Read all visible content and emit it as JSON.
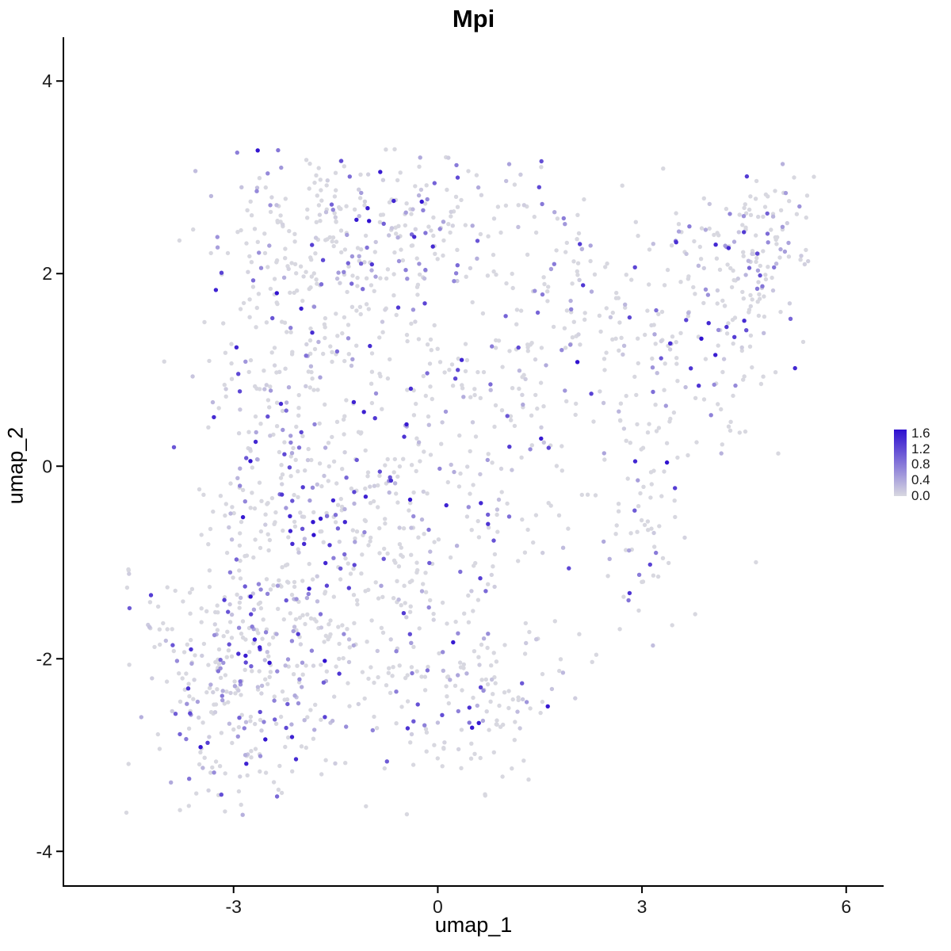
{
  "title": "Mpi",
  "chart_data": {
    "type": "scatter",
    "title": "Mpi",
    "subtitle": "",
    "xlabel": "umap_1",
    "ylabel": "umap_2",
    "xlim": [
      -5.5,
      6.55
    ],
    "ylim": [
      -4.36,
      4.43
    ],
    "x_ticks": [
      -3,
      0,
      3,
      6
    ],
    "y_ticks": [
      -4,
      -2,
      0,
      2,
      4
    ],
    "grid": false,
    "legend_position": "right",
    "legend": {
      "title": "",
      "tick_labels": [
        "1.6",
        "1.2",
        "0.8",
        "0.4",
        "0.0"
      ],
      "max_value": 1.7,
      "min_value": 0.0,
      "low_color": "#D8D8E0",
      "high_color": "#2E0FD0"
    },
    "point_radius": 2.7,
    "seed": 20240521,
    "n_points_approx": 1900,
    "expr_exponent": 1.8,
    "bounds": {
      "xmin": -4.75,
      "xmax": 5.55,
      "ymin": -3.65,
      "ymax": 3.3
    },
    "clusters": [
      {
        "cx": -2.9,
        "cy": -2.3,
        "sx": 0.75,
        "sy": 0.65,
        "n": 300,
        "expressed_frac": 0.45
      },
      {
        "cx": -2.3,
        "cy": -0.9,
        "sx": 0.7,
        "sy": 0.8,
        "n": 170,
        "expressed_frac": 0.4
      },
      {
        "cx": -2.3,
        "cy": 0.9,
        "sx": 0.7,
        "sy": 0.9,
        "n": 170,
        "expressed_frac": 0.4
      },
      {
        "cx": -1.6,
        "cy": 2.4,
        "sx": 0.7,
        "sy": 0.45,
        "n": 150,
        "expressed_frac": 0.4
      },
      {
        "cx": -0.3,
        "cy": 2.6,
        "sx": 0.9,
        "sy": 0.4,
        "n": 130,
        "expressed_frac": 0.35
      },
      {
        "cx": -0.6,
        "cy": 0.6,
        "sx": 0.9,
        "sy": 1.0,
        "n": 180,
        "expressed_frac": 0.35
      },
      {
        "cx": -0.4,
        "cy": -1.3,
        "sx": 0.9,
        "sy": 0.9,
        "n": 200,
        "expressed_frac": 0.35
      },
      {
        "cx": 0.6,
        "cy": -2.5,
        "sx": 0.7,
        "sy": 0.5,
        "n": 110,
        "expressed_frac": 0.35
      },
      {
        "cx": 1.1,
        "cy": 0.9,
        "sx": 0.7,
        "sy": 0.9,
        "n": 100,
        "expressed_frac": 0.35
      },
      {
        "cx": 2.2,
        "cy": 1.6,
        "sx": 0.6,
        "sy": 0.7,
        "n": 80,
        "expressed_frac": 0.3
      },
      {
        "cx": 3.3,
        "cy": 0.9,
        "sx": 0.7,
        "sy": 0.9,
        "n": 110,
        "expressed_frac": 0.3
      },
      {
        "cx": 4.3,
        "cy": 1.9,
        "sx": 0.6,
        "sy": 0.6,
        "n": 130,
        "expressed_frac": 0.35
      },
      {
        "cx": 4.8,
        "cy": 2.5,
        "sx": 0.35,
        "sy": 0.35,
        "n": 60,
        "expressed_frac": 0.4
      },
      {
        "cx": 2.9,
        "cy": -0.9,
        "sx": 0.45,
        "sy": 0.5,
        "n": 45,
        "expressed_frac": 0.25
      },
      {
        "cx": -4.55,
        "cy": -1.25,
        "sx": 0.12,
        "sy": 0.18,
        "n": 5,
        "expressed_frac": 0.5
      }
    ]
  }
}
